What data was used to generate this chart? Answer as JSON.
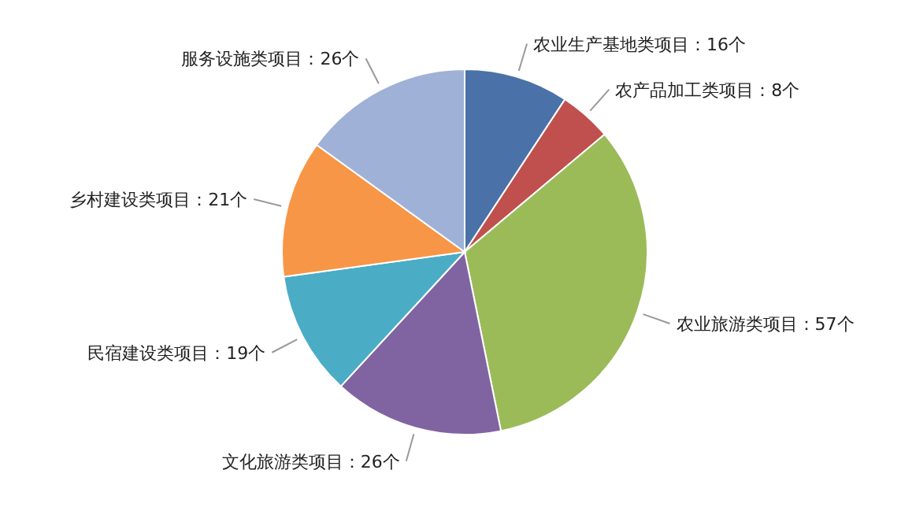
{
  "chart_data": {
    "type": "pie",
    "categories": [
      "农业生产基地类项目",
      "农产品加工类项目",
      "农业旅游类项目",
      "文化旅游类项目",
      "民宿建设类项目",
      "乡村建设类项目",
      "服务设施类项目"
    ],
    "values": [
      16,
      8,
      57,
      26,
      19,
      21,
      26
    ],
    "value_labels": [
      "16个",
      "8个",
      "57个",
      "26个",
      "19个",
      "21个",
      "26个"
    ],
    "colors": [
      "#4a72a8",
      "#c0504d",
      "#9bbb59",
      "#8064a2",
      "#4bacc6",
      "#f79646",
      "#9fb1d6"
    ]
  }
}
